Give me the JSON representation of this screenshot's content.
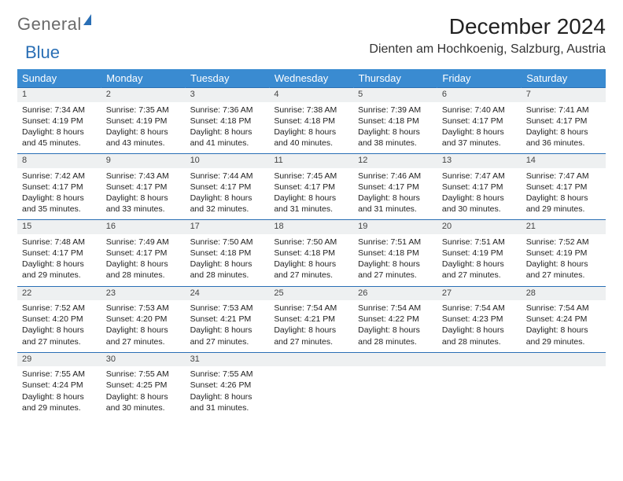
{
  "brand": {
    "part1": "General",
    "part2": "Blue"
  },
  "title": "December 2024",
  "location": "Dienten am Hochkoenig, Salzburg, Austria",
  "colors": {
    "header_bg": "#3a8bd1",
    "rule": "#2a6fb5",
    "daynum_bg": "#eef0f1"
  },
  "weekdays": [
    "Sunday",
    "Monday",
    "Tuesday",
    "Wednesday",
    "Thursday",
    "Friday",
    "Saturday"
  ],
  "weeks": [
    [
      {
        "n": "1",
        "sr": "7:34 AM",
        "ss": "4:19 PM",
        "dl": "8 hours and 45 minutes."
      },
      {
        "n": "2",
        "sr": "7:35 AM",
        "ss": "4:19 PM",
        "dl": "8 hours and 43 minutes."
      },
      {
        "n": "3",
        "sr": "7:36 AM",
        "ss": "4:18 PM",
        "dl": "8 hours and 41 minutes."
      },
      {
        "n": "4",
        "sr": "7:38 AM",
        "ss": "4:18 PM",
        "dl": "8 hours and 40 minutes."
      },
      {
        "n": "5",
        "sr": "7:39 AM",
        "ss": "4:18 PM",
        "dl": "8 hours and 38 minutes."
      },
      {
        "n": "6",
        "sr": "7:40 AM",
        "ss": "4:17 PM",
        "dl": "8 hours and 37 minutes."
      },
      {
        "n": "7",
        "sr": "7:41 AM",
        "ss": "4:17 PM",
        "dl": "8 hours and 36 minutes."
      }
    ],
    [
      {
        "n": "8",
        "sr": "7:42 AM",
        "ss": "4:17 PM",
        "dl": "8 hours and 35 minutes."
      },
      {
        "n": "9",
        "sr": "7:43 AM",
        "ss": "4:17 PM",
        "dl": "8 hours and 33 minutes."
      },
      {
        "n": "10",
        "sr": "7:44 AM",
        "ss": "4:17 PM",
        "dl": "8 hours and 32 minutes."
      },
      {
        "n": "11",
        "sr": "7:45 AM",
        "ss": "4:17 PM",
        "dl": "8 hours and 31 minutes."
      },
      {
        "n": "12",
        "sr": "7:46 AM",
        "ss": "4:17 PM",
        "dl": "8 hours and 31 minutes."
      },
      {
        "n": "13",
        "sr": "7:47 AM",
        "ss": "4:17 PM",
        "dl": "8 hours and 30 minutes."
      },
      {
        "n": "14",
        "sr": "7:47 AM",
        "ss": "4:17 PM",
        "dl": "8 hours and 29 minutes."
      }
    ],
    [
      {
        "n": "15",
        "sr": "7:48 AM",
        "ss": "4:17 PM",
        "dl": "8 hours and 29 minutes."
      },
      {
        "n": "16",
        "sr": "7:49 AM",
        "ss": "4:17 PM",
        "dl": "8 hours and 28 minutes."
      },
      {
        "n": "17",
        "sr": "7:50 AM",
        "ss": "4:18 PM",
        "dl": "8 hours and 28 minutes."
      },
      {
        "n": "18",
        "sr": "7:50 AM",
        "ss": "4:18 PM",
        "dl": "8 hours and 27 minutes."
      },
      {
        "n": "19",
        "sr": "7:51 AM",
        "ss": "4:18 PM",
        "dl": "8 hours and 27 minutes."
      },
      {
        "n": "20",
        "sr": "7:51 AM",
        "ss": "4:19 PM",
        "dl": "8 hours and 27 minutes."
      },
      {
        "n": "21",
        "sr": "7:52 AM",
        "ss": "4:19 PM",
        "dl": "8 hours and 27 minutes."
      }
    ],
    [
      {
        "n": "22",
        "sr": "7:52 AM",
        "ss": "4:20 PM",
        "dl": "8 hours and 27 minutes."
      },
      {
        "n": "23",
        "sr": "7:53 AM",
        "ss": "4:20 PM",
        "dl": "8 hours and 27 minutes."
      },
      {
        "n": "24",
        "sr": "7:53 AM",
        "ss": "4:21 PM",
        "dl": "8 hours and 27 minutes."
      },
      {
        "n": "25",
        "sr": "7:54 AM",
        "ss": "4:21 PM",
        "dl": "8 hours and 27 minutes."
      },
      {
        "n": "26",
        "sr": "7:54 AM",
        "ss": "4:22 PM",
        "dl": "8 hours and 28 minutes."
      },
      {
        "n": "27",
        "sr": "7:54 AM",
        "ss": "4:23 PM",
        "dl": "8 hours and 28 minutes."
      },
      {
        "n": "28",
        "sr": "7:54 AM",
        "ss": "4:24 PM",
        "dl": "8 hours and 29 minutes."
      }
    ],
    [
      {
        "n": "29",
        "sr": "7:55 AM",
        "ss": "4:24 PM",
        "dl": "8 hours and 29 minutes."
      },
      {
        "n": "30",
        "sr": "7:55 AM",
        "ss": "4:25 PM",
        "dl": "8 hours and 30 minutes."
      },
      {
        "n": "31",
        "sr": "7:55 AM",
        "ss": "4:26 PM",
        "dl": "8 hours and 31 minutes."
      },
      null,
      null,
      null,
      null
    ]
  ],
  "labels": {
    "sunrise": "Sunrise: ",
    "sunset": "Sunset: ",
    "daylight": "Daylight: "
  }
}
